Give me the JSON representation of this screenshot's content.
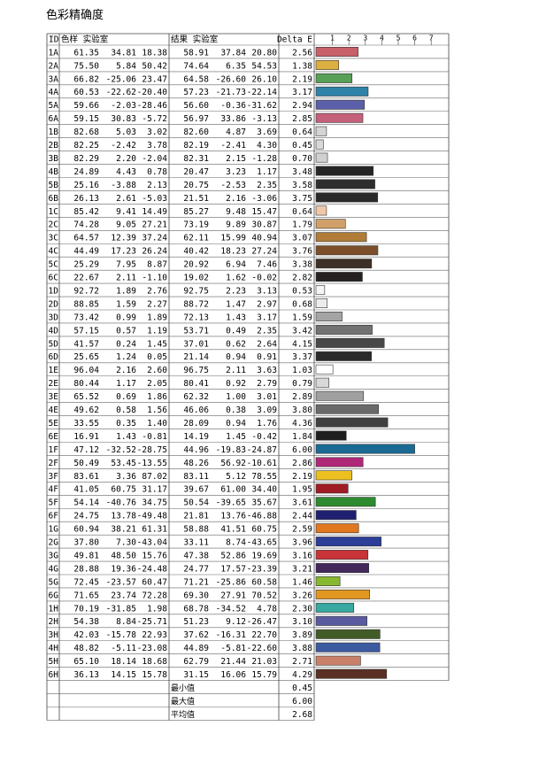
{
  "title": "色彩精确度",
  "headers": {
    "id": "ID",
    "sample": "色样 实验室",
    "result": "结果 实验室",
    "delta": "Delta E"
  },
  "chart_data": {
    "type": "bar",
    "orientation": "horizontal",
    "title": "色彩精确度",
    "xlabel": "Delta E",
    "xlim": [
      0,
      7
    ],
    "xticks": [
      "1",
      "2",
      "3",
      "4",
      "5",
      "6",
      "7"
    ],
    "categories": [
      "1A",
      "2A",
      "3A",
      "4A",
      "5A",
      "6A",
      "1B",
      "2B",
      "3B",
      "4B",
      "5B",
      "6B",
      "1C",
      "2C",
      "3C",
      "4C",
      "5C",
      "6C",
      "1D",
      "2D",
      "3D",
      "4D",
      "5D",
      "6D",
      "1E",
      "2E",
      "3E",
      "4E",
      "5E",
      "6E",
      "1F",
      "2F",
      "3F",
      "4F",
      "5F",
      "6F",
      "1G",
      "2G",
      "3G",
      "4G",
      "5G",
      "6G",
      "1H",
      "2H",
      "3H",
      "4H",
      "5H",
      "6H"
    ],
    "values": [
      2.56,
      1.38,
      2.19,
      3.17,
      2.94,
      2.85,
      0.64,
      0.45,
      0.7,
      3.48,
      3.58,
      3.75,
      0.64,
      1.79,
      3.07,
      3.76,
      3.38,
      2.82,
      0.53,
      0.68,
      1.59,
      3.42,
      4.15,
      3.37,
      1.03,
      0.79,
      2.89,
      3.8,
      4.36,
      1.84,
      6.0,
      2.86,
      2.19,
      1.95,
      3.61,
      2.44,
      2.59,
      3.96,
      3.16,
      3.21,
      1.46,
      3.26,
      2.3,
      3.1,
      3.89,
      3.88,
      2.71,
      4.29
    ],
    "sample_lab": [
      [
        "61.35",
        "34.81",
        "18.38"
      ],
      [
        "75.50",
        "5.84",
        "50.42"
      ],
      [
        "66.82",
        "-25.06",
        "23.47"
      ],
      [
        "60.53",
        "-22.62",
        "-20.40"
      ],
      [
        "59.66",
        "-2.03",
        "-28.46"
      ],
      [
        "59.15",
        "30.83",
        "-5.72"
      ],
      [
        "82.68",
        "5.03",
        "3.02"
      ],
      [
        "82.25",
        "-2.42",
        "3.78"
      ],
      [
        "82.29",
        "2.20",
        "-2.04"
      ],
      [
        "24.89",
        "4.43",
        "0.78"
      ],
      [
        "25.16",
        "-3.88",
        "2.13"
      ],
      [
        "26.13",
        "2.61",
        "-5.03"
      ],
      [
        "85.42",
        "9.41",
        "14.49"
      ],
      [
        "74.28",
        "9.05",
        "27.21"
      ],
      [
        "64.57",
        "12.39",
        "37.24"
      ],
      [
        "44.49",
        "17.23",
        "26.24"
      ],
      [
        "25.29",
        "7.95",
        "8.87"
      ],
      [
        "22.67",
        "2.11",
        "-1.10"
      ],
      [
        "92.72",
        "1.89",
        "2.76"
      ],
      [
        "88.85",
        "1.59",
        "2.27"
      ],
      [
        "73.42",
        "0.99",
        "1.89"
      ],
      [
        "57.15",
        "0.57",
        "1.19"
      ],
      [
        "41.57",
        "0.24",
        "1.45"
      ],
      [
        "25.65",
        "1.24",
        "0.05"
      ],
      [
        "96.04",
        "2.16",
        "2.60"
      ],
      [
        "80.44",
        "1.17",
        "2.05"
      ],
      [
        "65.52",
        "0.69",
        "1.86"
      ],
      [
        "49.62",
        "0.58",
        "1.56"
      ],
      [
        "33.55",
        "0.35",
        "1.40"
      ],
      [
        "16.91",
        "1.43",
        "-0.81"
      ],
      [
        "47.12",
        "-32.52",
        "-28.75"
      ],
      [
        "50.49",
        "53.45",
        "-13.55"
      ],
      [
        "83.61",
        "3.36",
        "87.02"
      ],
      [
        "41.05",
        "60.75",
        "31.17"
      ],
      [
        "54.14",
        "-40.76",
        "34.75"
      ],
      [
        "24.75",
        "13.78",
        "-49.48"
      ],
      [
        "60.94",
        "38.21",
        "61.31"
      ],
      [
        "37.80",
        "7.30",
        "-43.04"
      ],
      [
        "49.81",
        "48.50",
        "15.76"
      ],
      [
        "28.88",
        "19.36",
        "-24.48"
      ],
      [
        "72.45",
        "-23.57",
        "60.47"
      ],
      [
        "71.65",
        "23.74",
        "72.28"
      ],
      [
        "70.19",
        "-31.85",
        "1.98"
      ],
      [
        "54.38",
        "8.84",
        "-25.71"
      ],
      [
        "42.03",
        "-15.78",
        "22.93"
      ],
      [
        "48.82",
        "-5.11",
        "-23.08"
      ],
      [
        "65.10",
        "18.14",
        "18.68"
      ],
      [
        "36.13",
        "14.15",
        "15.78"
      ]
    ],
    "result_lab": [
      [
        "58.91",
        "37.84",
        "20.80"
      ],
      [
        "74.64",
        "6.35",
        "54.53"
      ],
      [
        "64.58",
        "-26.60",
        "26.10"
      ],
      [
        "57.23",
        "-21.73",
        "-22.14"
      ],
      [
        "56.60",
        "-0.36",
        "-31.62"
      ],
      [
        "56.97",
        "33.86",
        "-3.13"
      ],
      [
        "82.60",
        "4.87",
        "3.69"
      ],
      [
        "82.19",
        "-2.41",
        "4.30"
      ],
      [
        "82.31",
        "2.15",
        "-1.28"
      ],
      [
        "20.47",
        "3.23",
        "1.17"
      ],
      [
        "20.75",
        "-2.53",
        "2.35"
      ],
      [
        "21.51",
        "2.16",
        "-3.06"
      ],
      [
        "85.27",
        "9.48",
        "15.47"
      ],
      [
        "73.19",
        "9.89",
        "30.87"
      ],
      [
        "62.11",
        "15.99",
        "40.94"
      ],
      [
        "40.42",
        "18.23",
        "27.24"
      ],
      [
        "20.92",
        "6.94",
        "7.46"
      ],
      [
        "19.02",
        "1.62",
        "-0.02"
      ],
      [
        "92.75",
        "2.23",
        "3.13"
      ],
      [
        "88.72",
        "1.47",
        "2.97"
      ],
      [
        "72.13",
        "1.43",
        "3.17"
      ],
      [
        "53.71",
        "0.49",
        "2.35"
      ],
      [
        "37.01",
        "0.62",
        "2.64"
      ],
      [
        "21.14",
        "0.94",
        "0.91"
      ],
      [
        "96.75",
        "2.11",
        "3.63"
      ],
      [
        "80.41",
        "0.92",
        "2.79"
      ],
      [
        "62.32",
        "1.00",
        "3.01"
      ],
      [
        "46.06",
        "0.38",
        "3.09"
      ],
      [
        "28.09",
        "0.94",
        "1.76"
      ],
      [
        "14.19",
        "1.45",
        "-0.42"
      ],
      [
        "44.96",
        "-19.83",
        "-24.87"
      ],
      [
        "48.26",
        "56.92",
        "-10.61"
      ],
      [
        "83.11",
        "5.12",
        "78.55"
      ],
      [
        "39.67",
        "61.00",
        "34.40"
      ],
      [
        "50.54",
        "-39.65",
        "35.67"
      ],
      [
        "21.81",
        "13.76",
        "-46.88"
      ],
      [
        "58.88",
        "41.51",
        "60.75"
      ],
      [
        "33.11",
        "8.74",
        "-43.65"
      ],
      [
        "47.38",
        "52.86",
        "19.69"
      ],
      [
        "24.77",
        "17.57",
        "-23.39"
      ],
      [
        "71.21",
        "-25.86",
        "60.58"
      ],
      [
        "69.30",
        "27.91",
        "70.52"
      ],
      [
        "68.78",
        "-34.52",
        "4.78"
      ],
      [
        "51.23",
        "9.12",
        "-26.47"
      ],
      [
        "37.62",
        "-16.31",
        "22.70"
      ],
      [
        "44.89",
        "-5.81",
        "-22.60"
      ],
      [
        "62.79",
        "21.44",
        "21.03"
      ],
      [
        "31.15",
        "16.06",
        "15.79"
      ]
    ],
    "colors": [
      "#c8606a",
      "#dcb040",
      "#58a058",
      "#2f82a8",
      "#5b5ea8",
      "#c4607a",
      "#d4d4d4",
      "#d8d8d8",
      "#d0d0d0",
      "#262626",
      "#2e2e2e",
      "#2a2a2a",
      "#f0c8a8",
      "#d0a068",
      "#b07c38",
      "#7c4f2a",
      "#3d3028",
      "#262222",
      "#f4f4f4",
      "#ececec",
      "#a4a4a4",
      "#727272",
      "#484848",
      "#2a2a2a",
      "#ffffff",
      "#d8d8d8",
      "#a0a0a0",
      "#6a6a6a",
      "#404040",
      "#1e1e1e",
      "#1a6a94",
      "#b02878",
      "#ecc020",
      "#a01c24",
      "#2e8a2e",
      "#202070",
      "#e07820",
      "#2c3e98",
      "#c83438",
      "#44285c",
      "#88b830",
      "#e29820",
      "#38a8a0",
      "#5a5aa0",
      "#425c28",
      "#3c5aa0",
      "#c88068",
      "#5a3024"
    ],
    "legend": "none",
    "grid": true
  },
  "summary": {
    "min_label": "最小值",
    "min_value": "0.45",
    "max_label": "最大值",
    "max_value": "6.00",
    "avg_label": "平均值",
    "avg_value": "2.68"
  }
}
